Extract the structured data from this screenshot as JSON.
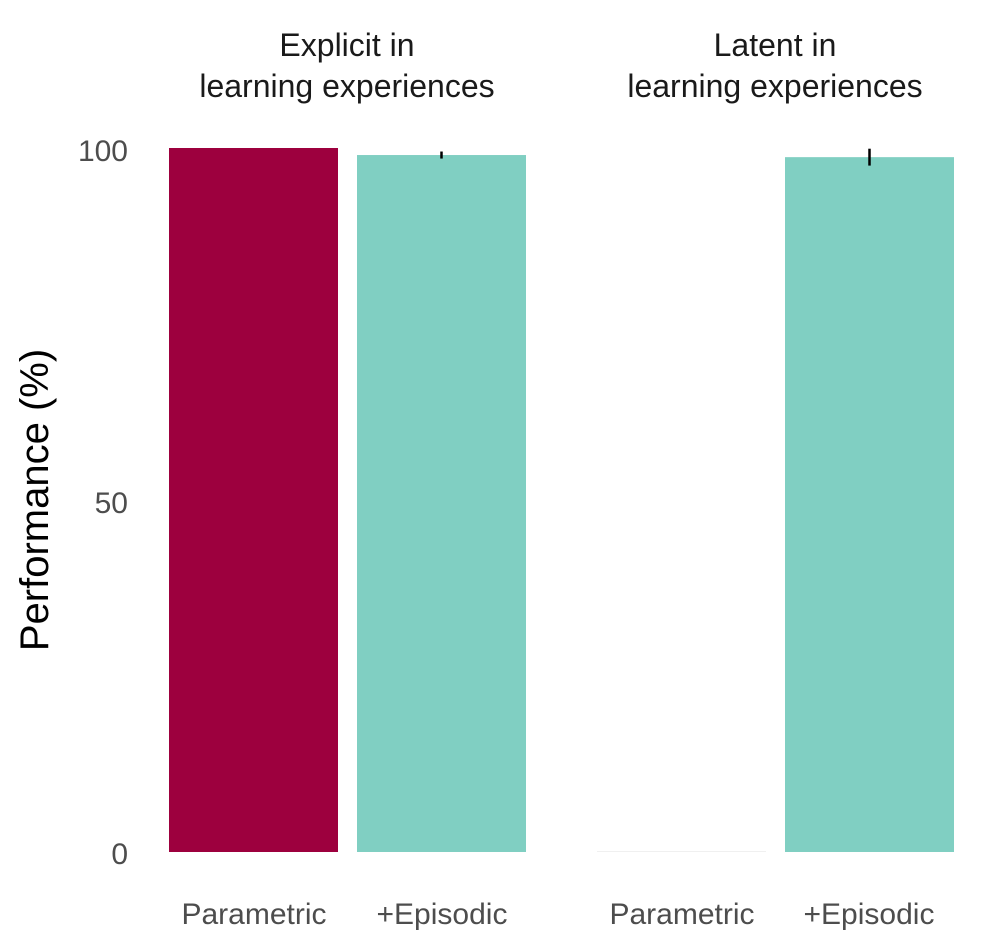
{
  "chart_data": {
    "type": "bar",
    "ylabel": "Performance (%)",
    "ylim": [
      0,
      100
    ],
    "yticks": [
      "0",
      "50",
      "100"
    ],
    "grid": false,
    "colors": {
      "Parametric": "#9d003e",
      "+Episodic": "#80cfc2",
      "errorbar": "#000000"
    },
    "panels": [
      {
        "title_line1": "Explicit in",
        "title_line2": "learning experiences",
        "categories": [
          "Parametric",
          "+Episodic"
        ],
        "values": [
          100,
          99
        ],
        "errors": [
          0,
          0.5
        ]
      },
      {
        "title_line1": "Latent in",
        "title_line2": "learning experiences",
        "categories": [
          "Parametric",
          "+Episodic"
        ],
        "values": [
          0,
          98.7
        ],
        "errors": [
          0,
          1.2
        ]
      }
    ]
  }
}
